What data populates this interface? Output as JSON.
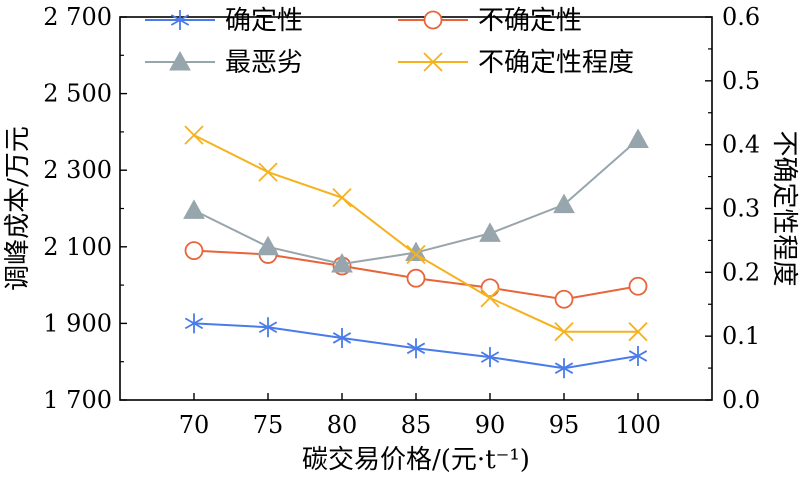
{
  "chart_data": {
    "type": "line",
    "xlabel": "碳交易价格/(元·t⁻¹)",
    "ylabel_left": "调峰成本/万元",
    "ylabel_right": "不确定性程度",
    "x": [
      70,
      75,
      80,
      85,
      90,
      95,
      100
    ],
    "x_tick_labels": [
      "70",
      "75",
      "80",
      "85",
      "90",
      "95",
      "100"
    ],
    "xlim": [
      65,
      105
    ],
    "ylim_left": [
      1700,
      2700
    ],
    "ylim_right": [
      0.0,
      0.6
    ],
    "y_left_tick_labels": [
      "1 700",
      "1 900",
      "2 100",
      "2 300",
      "2 500",
      "2 700"
    ],
    "y_left_ticks": [
      1700,
      1900,
      2100,
      2300,
      2500,
      2700
    ],
    "y_right_tick_labels": [
      "0.0",
      "0.1",
      "0.2",
      "0.3",
      "0.4",
      "0.5",
      "0.6"
    ],
    "y_right_ticks": [
      0.0,
      0.1,
      0.2,
      0.3,
      0.4,
      0.5,
      0.6
    ],
    "grid": false,
    "legend_position": "top",
    "series": [
      {
        "name": "确定性",
        "axis": "left",
        "marker": "asterisk",
        "color": "#4a7be8",
        "values": [
          1900,
          1890,
          1862,
          1835,
          1812,
          1783,
          1815
        ]
      },
      {
        "name": "不确定性",
        "axis": "left",
        "marker": "circle",
        "color": "#e8643a",
        "values": [
          2090,
          2080,
          2050,
          2018,
          1993,
          1963,
          1997
        ]
      },
      {
        "name": "最恶劣",
        "axis": "left",
        "marker": "triangle",
        "color": "#97a5ad",
        "values": [
          2195,
          2100,
          2055,
          2085,
          2135,
          2210,
          2380
        ]
      },
      {
        "name": "不确定性程度",
        "axis": "right",
        "marker": "x",
        "color": "#f5b21e",
        "values": [
          0.415,
          0.357,
          0.317,
          0.228,
          0.16,
          0.107,
          0.107
        ]
      }
    ]
  }
}
